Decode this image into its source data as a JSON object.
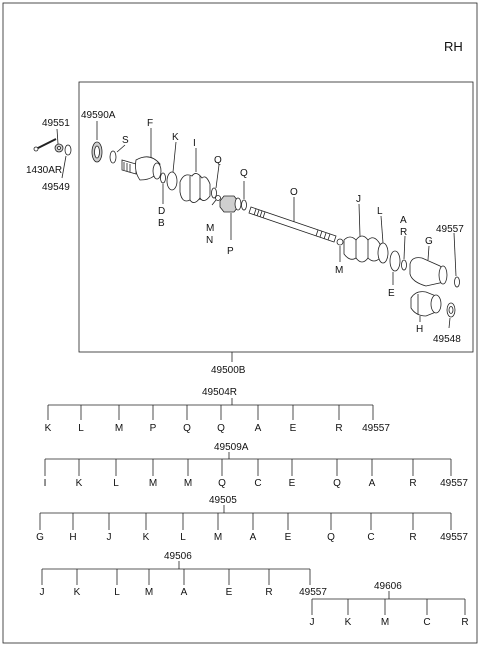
{
  "header": {
    "side": "RH"
  },
  "callouts": {
    "c49551": "49551",
    "c49590A": "49590A",
    "c1430AR": "1430AR",
    "c49549": "49549",
    "S": "S",
    "F": "F",
    "K": "K",
    "I": "I",
    "Q1": "Q",
    "Q2": "Q",
    "D": "D",
    "B": "B",
    "M1": "M",
    "N": "N",
    "P": "P",
    "O": "O",
    "J": "J",
    "L": "L",
    "A": "A",
    "R": "R",
    "c49557": "49557",
    "G": "G",
    "M2": "M",
    "E": "E",
    "H": "H",
    "c49548": "49548"
  },
  "assembly_label": "49500B",
  "kits": [
    {
      "number": "49504R",
      "parts": [
        "K",
        "L",
        "M",
        "P",
        "Q",
        "Q",
        "A",
        "E",
        "R",
        "49557"
      ]
    },
    {
      "number": "49509A",
      "parts": [
        "I",
        "K",
        "L",
        "M",
        "M",
        "Q",
        "C",
        "E",
        "Q",
        "A",
        "R",
        "49557"
      ]
    },
    {
      "number": "49505",
      "parts": [
        "G",
        "H",
        "J",
        "K",
        "L",
        "M",
        "A",
        "E",
        "Q",
        "C",
        "R",
        "49557"
      ]
    },
    {
      "number": "49506",
      "parts": [
        "J",
        "K",
        "L",
        "M",
        "A",
        "E",
        "R",
        "49557"
      ]
    },
    {
      "number": "49606",
      "parts": [
        "J",
        "K",
        "M",
        "C",
        "R"
      ]
    }
  ]
}
